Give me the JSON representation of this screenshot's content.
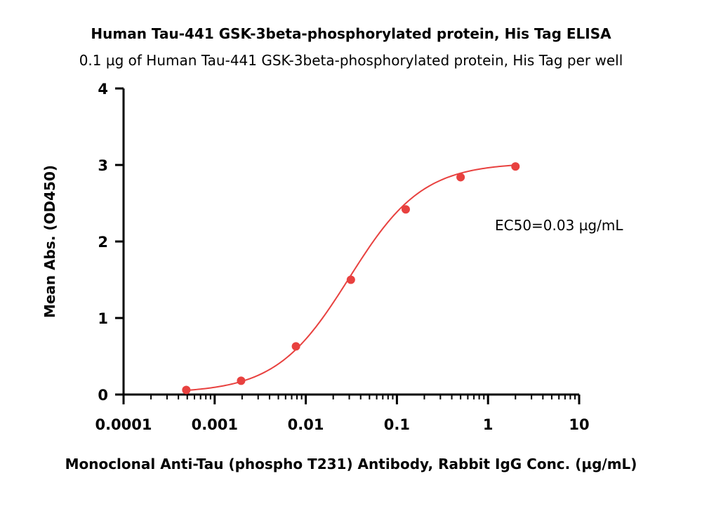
{
  "chart_data": {
    "type": "scatter",
    "title": "Human Tau-441 GSK-3beta-phosphorylated protein, His Tag ELISA",
    "subtitle": "0.1 µg of Human Tau-441 GSK-3beta-phosphorylated protein, His Tag per well",
    "xlabel": "Monoclonal Anti-Tau (phospho T231) Antibody, Rabbit IgG Conc. (µg/mL)",
    "ylabel": "Mean Abs. (OD450)",
    "x_scale": "log",
    "xlim": [
      0.0001,
      10
    ],
    "ylim": [
      0,
      4
    ],
    "x_ticks": [
      0.0001,
      0.001,
      0.01,
      0.1,
      1,
      10
    ],
    "x_tick_labels": [
      "0.0001",
      "0.001",
      "0.01",
      "0.1",
      "1",
      "10"
    ],
    "y_ticks": [
      0,
      1,
      2,
      3,
      4
    ],
    "y_tick_labels": [
      "0",
      "1",
      "2",
      "3",
      "4"
    ],
    "grid": false,
    "color": "#e8413f",
    "series": [
      {
        "x": [
          0.000488,
          0.00195,
          0.0078,
          0.03125,
          0.125,
          0.5,
          2
        ],
        "y": [
          0.06,
          0.18,
          0.63,
          1.5,
          2.42,
          2.84,
          2.98
        ]
      }
    ],
    "fit": {
      "type": "4PL",
      "bottom": 0.02,
      "top": 3.03,
      "ec50": 0.03,
      "hill": 1.08
    },
    "annotation": "EC50=0.03 µg/mL"
  }
}
